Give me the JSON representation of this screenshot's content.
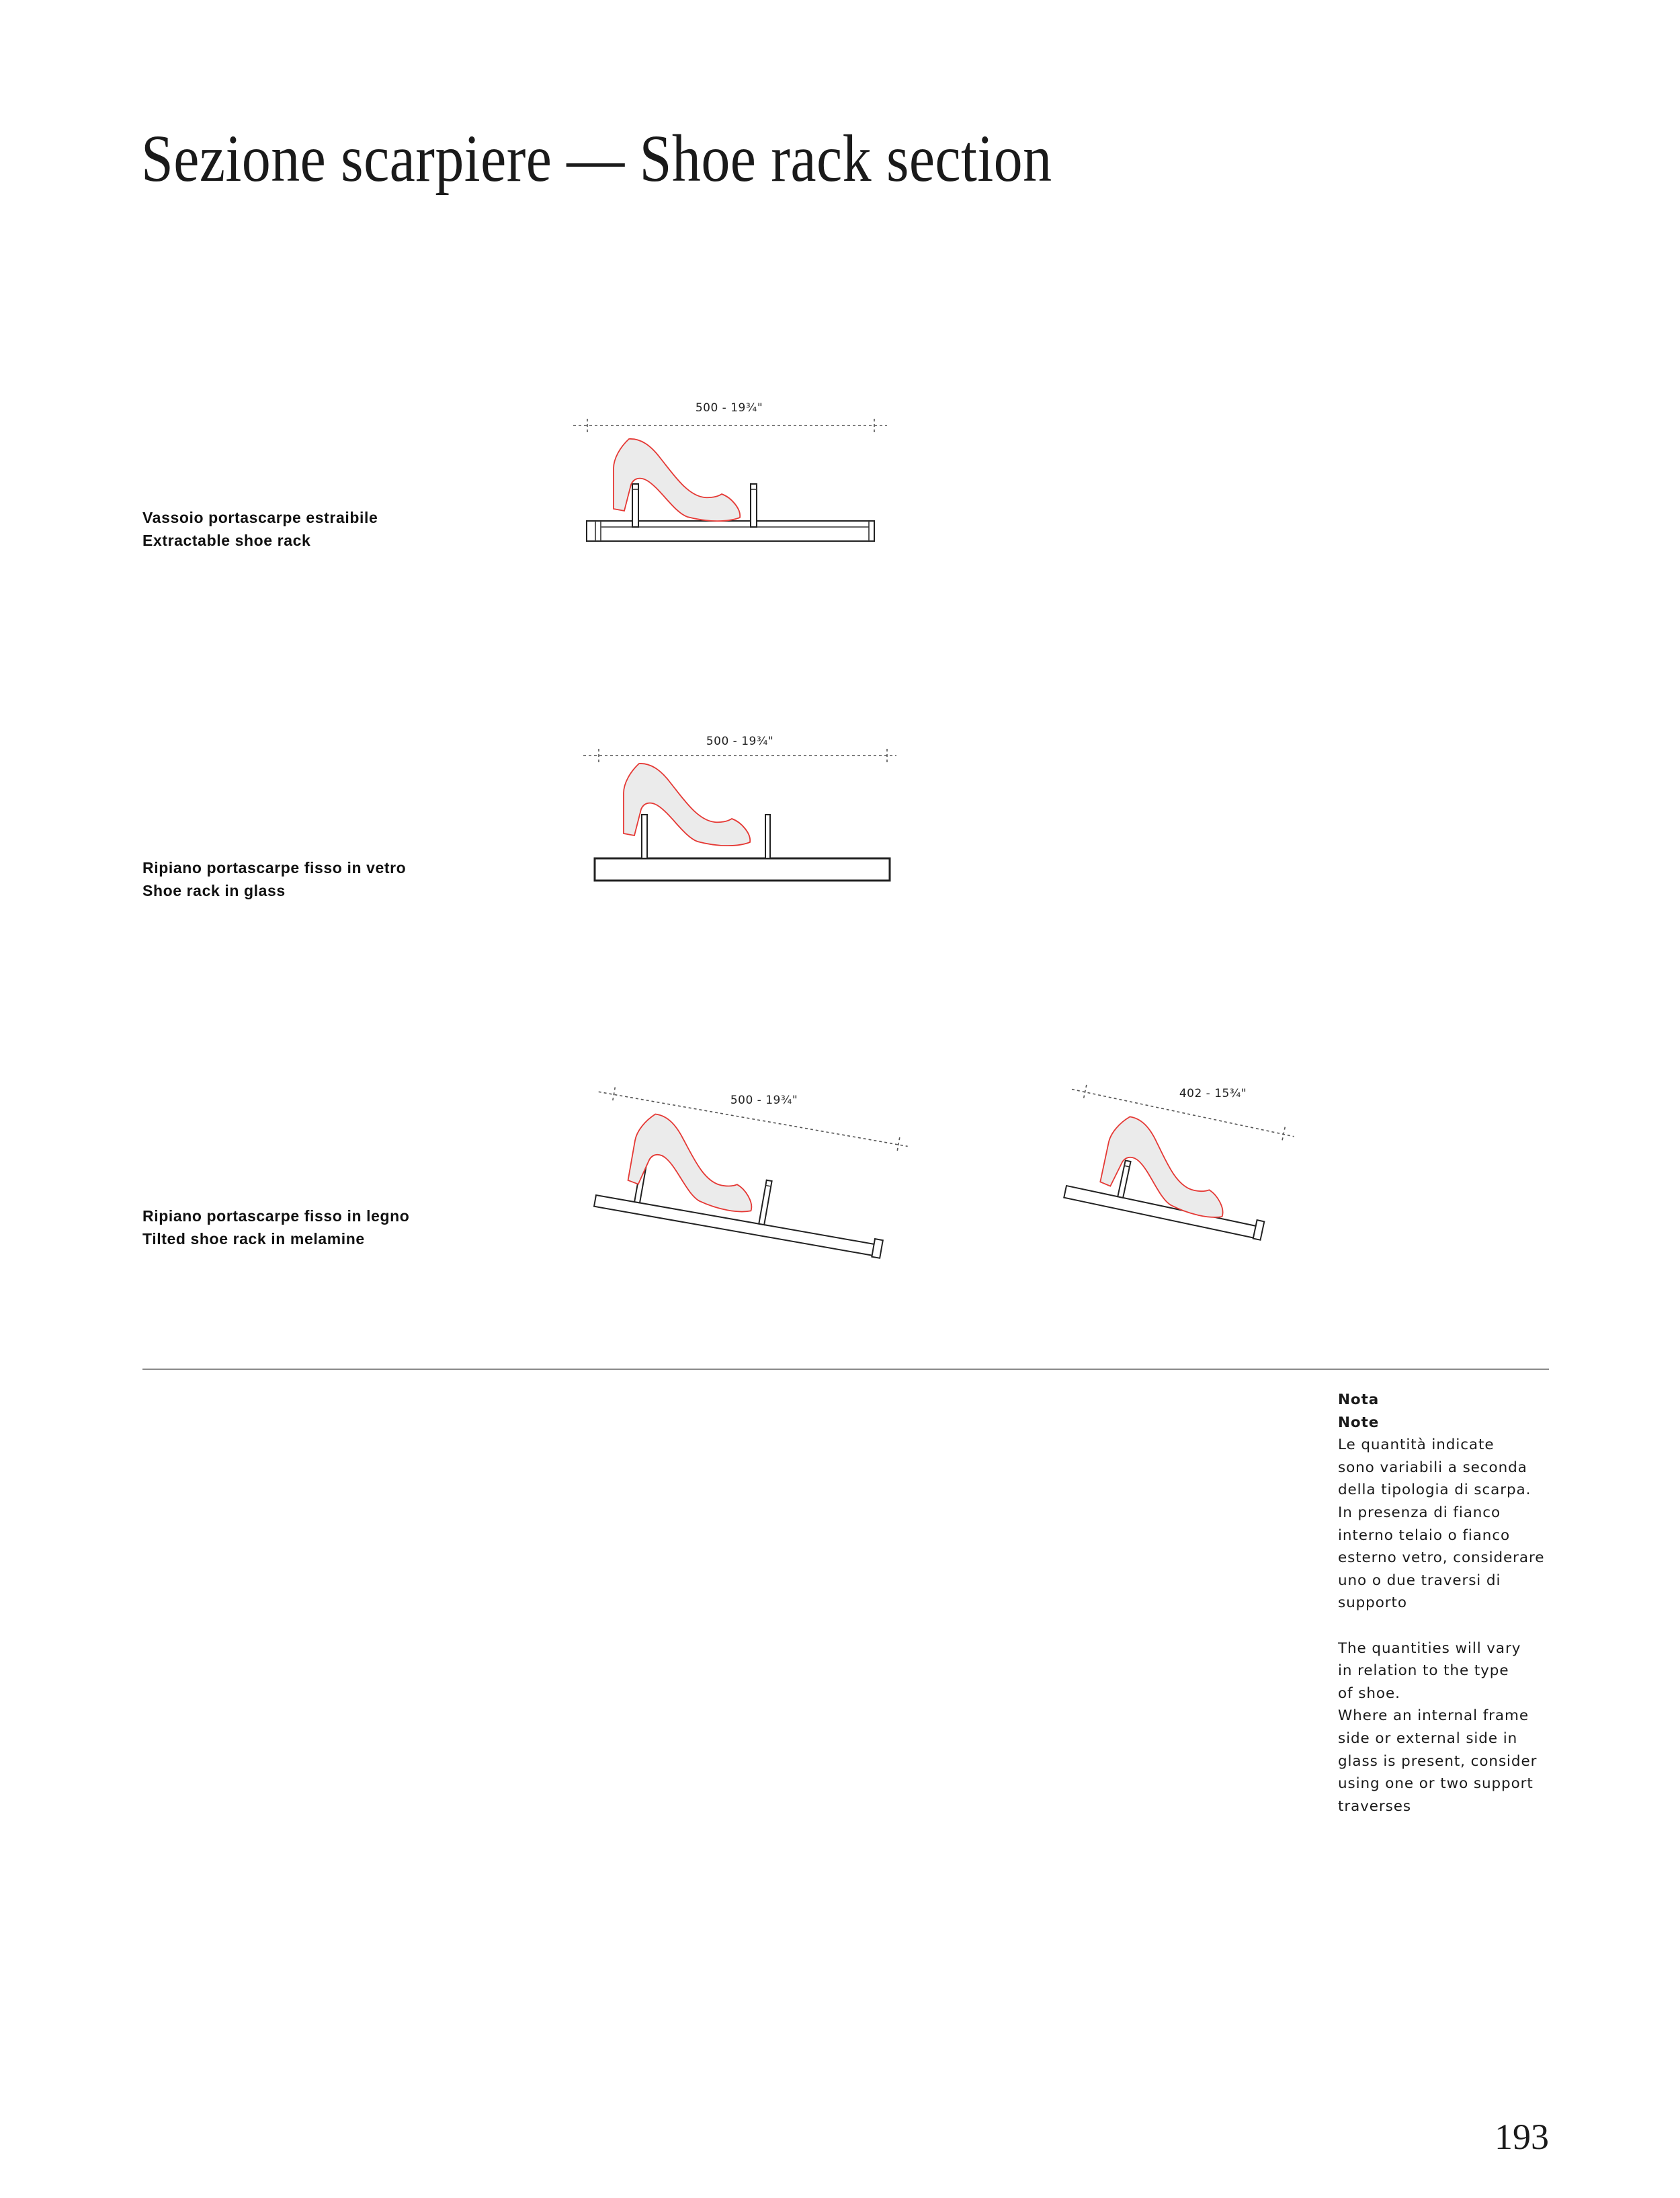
{
  "page": {
    "title": "Sezione scarpiere — Shoe rack section",
    "page_number": "193"
  },
  "colors": {
    "shoe_outline": "#e53935",
    "shoe_fill": "#ebebeb",
    "line": "#222222"
  },
  "sections": [
    {
      "label_it": "Vassoio portascarpe estraibile",
      "label_en": "Extractable shoe rack",
      "dimension": "500 - 19¾\""
    },
    {
      "label_it": "Ripiano portascarpe fisso in vetro",
      "label_en": "Shoe rack in glass",
      "dimension": "500 - 19¾\""
    },
    {
      "label_it": "Ripiano portascarpe fisso in legno",
      "label_en": "Tilted shoe rack in melamine",
      "dimension": "500 - 19¾\"",
      "dimension_alt": "402 - 15¾\""
    }
  ],
  "note": {
    "heading_it": "Nota",
    "heading_en": "Note",
    "lines_it": [
      "Le quantità indicate",
      "sono variabili a seconda",
      "della tipologia di scarpa.",
      "In presenza di fianco",
      "interno telaio o fianco",
      "esterno vetro, considerare",
      "uno o due traversi di",
      "supporto"
    ],
    "lines_en": [
      "The quantities will vary",
      "in relation to the type",
      "of shoe.",
      "Where an internal frame",
      "side or external side in",
      "glass is present, consider",
      "using one or two support",
      "traverses"
    ]
  }
}
